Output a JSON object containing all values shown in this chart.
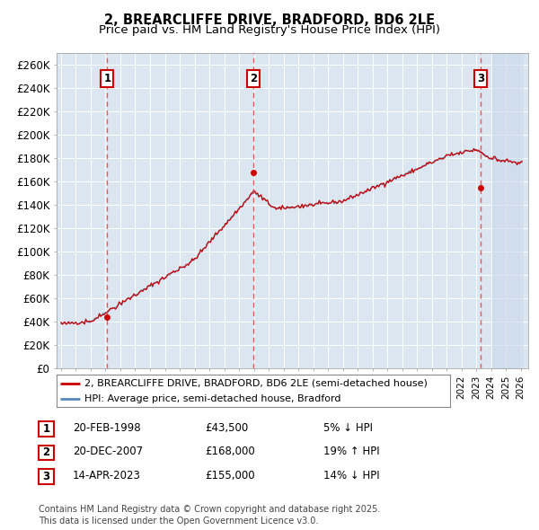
{
  "title": "2, BREARCLIFFE DRIVE, BRADFORD, BD6 2LE",
  "subtitle": "Price paid vs. HM Land Registry's House Price Index (HPI)",
  "ylim": [
    0,
    270000
  ],
  "yticks": [
    0,
    20000,
    40000,
    60000,
    80000,
    100000,
    120000,
    140000,
    160000,
    180000,
    200000,
    220000,
    240000,
    260000
  ],
  "ytick_labels": [
    "£0",
    "£20K",
    "£40K",
    "£60K",
    "£80K",
    "£100K",
    "£120K",
    "£140K",
    "£160K",
    "£180K",
    "£200K",
    "£220K",
    "£240K",
    "£260K"
  ],
  "hpi_color": "#5588bb",
  "price_color": "#cc0000",
  "dashed_line_color": "#ee4444",
  "plot_bg_color": "#dce6f1",
  "grid_color": "#ffffff",
  "fig_bg_color": "#ffffff",
  "sale_points": [
    {
      "label": "1",
      "date_num": 1998.12,
      "price": 43500
    },
    {
      "label": "2",
      "date_num": 2007.95,
      "price": 168000
    },
    {
      "label": "3",
      "date_num": 2023.28,
      "price": 155000
    }
  ],
  "legend_entries": [
    "2, BREARCLIFFE DRIVE, BRADFORD, BD6 2LE (semi-detached house)",
    "HPI: Average price, semi-detached house, Bradford"
  ],
  "table_rows": [
    {
      "num": "1",
      "date": "20-FEB-1998",
      "price": "£43,500",
      "hpi": "5% ↓ HPI"
    },
    {
      "num": "2",
      "date": "20-DEC-2007",
      "price": "£168,000",
      "hpi": "19% ↑ HPI"
    },
    {
      "num": "3",
      "date": "14-APR-2023",
      "price": "£155,000",
      "hpi": "14% ↓ HPI"
    }
  ],
  "footnote": "Contains HM Land Registry data © Crown copyright and database right 2025.\nThis data is licensed under the Open Government Licence v3.0.",
  "title_fontsize": 10.5,
  "subtitle_fontsize": 9.5,
  "tick_fontsize": 8.5,
  "legend_fontsize": 8,
  "table_fontsize": 8.5,
  "footnote_fontsize": 7
}
